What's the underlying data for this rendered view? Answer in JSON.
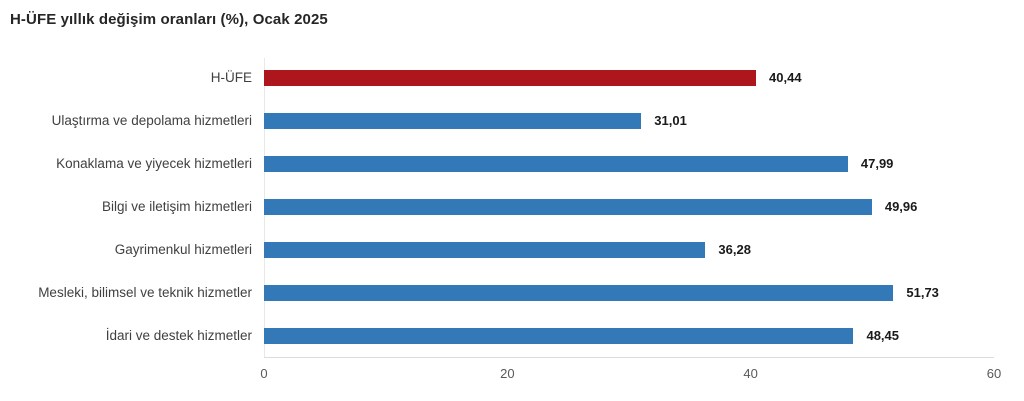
{
  "title": "H-ÜFE yıllık değişim oranları (%), Ocak 2025",
  "chart_data": {
    "type": "bar",
    "orientation": "horizontal",
    "title": "H-ÜFE yıllık değişim oranları (%), Ocak 2025",
    "categories": [
      "H-ÜFE",
      "Ulaştırma ve depolama hizmetleri",
      "Konaklama ve yiyecek hizmetleri",
      "Bilgi ve iletişim hizmetleri",
      "Gayrimenkul hizmetleri",
      "Mesleki, bilimsel ve teknik hizmetler",
      "İdari ve destek hizmetler"
    ],
    "values": [
      40.44,
      31.01,
      47.99,
      49.96,
      36.28,
      51.73,
      48.45
    ],
    "value_labels": [
      "40,44",
      "31,01",
      "47,99",
      "49,96",
      "36,28",
      "51,73",
      "48,45"
    ],
    "highlight_index": 0,
    "xlim": [
      0,
      60
    ],
    "xticks": [
      0,
      20,
      40,
      60
    ],
    "xtick_labels": [
      "0",
      "20",
      "40",
      "60"
    ],
    "xlabel": "",
    "ylabel": "",
    "grid": false,
    "legend": false,
    "colors": {
      "highlight_bar": "#ae161d",
      "default_bar": "#3379b8",
      "title_text": "#262626",
      "category_text": "#404040",
      "value_text": "#1a1a1a",
      "tick_text": "#595959",
      "axis_line": "#dcdcdc"
    }
  }
}
